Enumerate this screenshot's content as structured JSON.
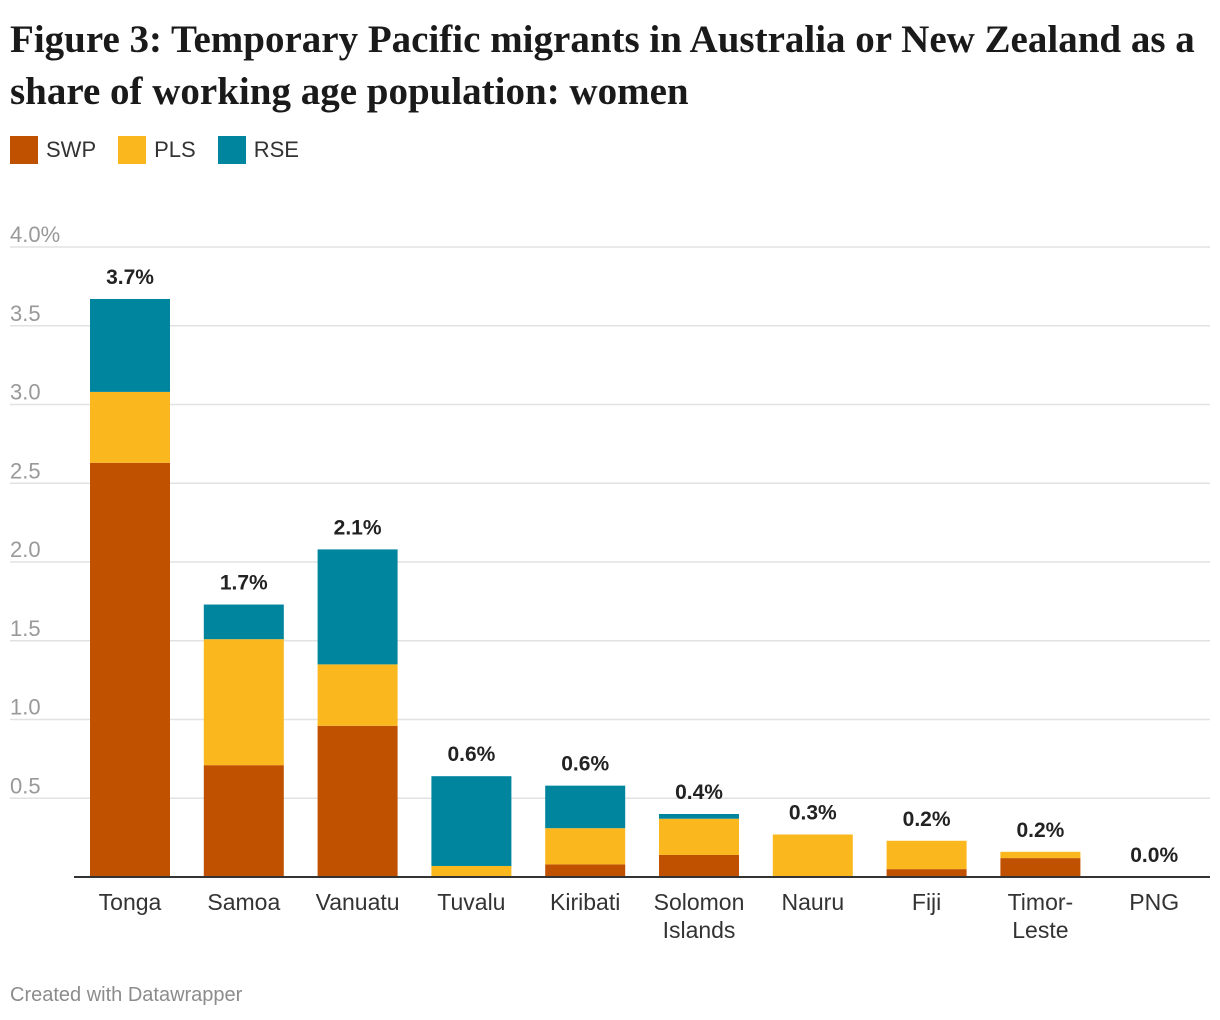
{
  "title": "Figure 3: Temporary Pacific migrants in Australia or New Zealand as a share of working age population: women",
  "footer": "Created with Datawrapper",
  "colors": {
    "SWP": "#c05100",
    "PLS": "#fbb81e",
    "RSE": "#00859e",
    "grid": "#e2e2e2",
    "baseline": "#333333"
  },
  "chart_data": {
    "type": "bar",
    "stacked": true,
    "title": "Figure 3: Temporary Pacific migrants in Australia or New Zealand as a share of working age population: women",
    "legend_position": "top-left",
    "grid": true,
    "ylim": [
      0,
      4.0
    ],
    "yticks": [
      {
        "value": 0.5,
        "label": "0.5"
      },
      {
        "value": 1.0,
        "label": "1.0"
      },
      {
        "value": 1.5,
        "label": "1.5"
      },
      {
        "value": 2.0,
        "label": "2.0"
      },
      {
        "value": 2.5,
        "label": "2.5"
      },
      {
        "value": 3.0,
        "label": "3.0"
      },
      {
        "value": 3.5,
        "label": "3.5"
      },
      {
        "value": 4.0,
        "label": "4.0%"
      }
    ],
    "categories": [
      [
        "Tonga"
      ],
      [
        "Samoa"
      ],
      [
        "Vanuatu"
      ],
      [
        "Tuvalu"
      ],
      [
        "Kiribati"
      ],
      [
        "Solomon",
        "Islands"
      ],
      [
        "Nauru"
      ],
      [
        "Fiji"
      ],
      [
        "Timor-",
        "Leste"
      ],
      [
        "PNG"
      ]
    ],
    "series": [
      {
        "name": "SWP",
        "values": [
          2.63,
          0.71,
          0.96,
          0.0,
          0.08,
          0.14,
          0.0,
          0.05,
          0.12,
          0.0
        ]
      },
      {
        "name": "PLS",
        "values": [
          0.45,
          0.8,
          0.39,
          0.07,
          0.23,
          0.23,
          0.27,
          0.18,
          0.04,
          0.0
        ]
      },
      {
        "name": "RSE",
        "values": [
          0.59,
          0.22,
          0.73,
          0.57,
          0.27,
          0.03,
          0.0,
          0.0,
          0.0,
          0.0
        ]
      }
    ],
    "totals": [
      "3.7%",
      "1.7%",
      "2.1%",
      "0.6%",
      "0.6%",
      "0.4%",
      "0.3%",
      "0.2%",
      "0.2%",
      "0.0%"
    ]
  }
}
